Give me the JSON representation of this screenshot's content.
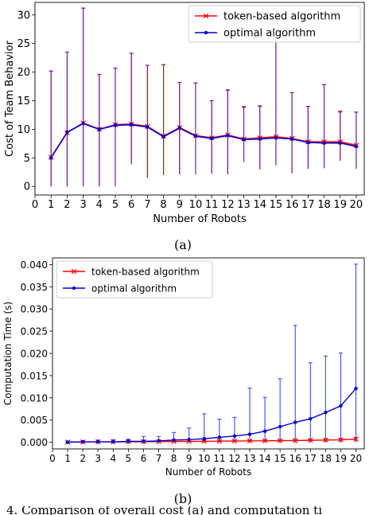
{
  "chart_data": [
    {
      "type": "line",
      "caption": "(a)",
      "xlabel": "Number of Robots",
      "ylabel": "Cost of Team Behavior",
      "xlim": [
        0,
        20.5
      ],
      "ylim": [
        -1.5,
        32.2
      ],
      "xticks": [
        "0",
        "1",
        "2",
        "3",
        "4",
        "5",
        "6",
        "7",
        "8",
        "9",
        "10",
        "11",
        "12",
        "13",
        "14",
        "15",
        "16",
        "17",
        "18",
        "19",
        "20"
      ],
      "yticks": [
        "0",
        "5",
        "10",
        "15",
        "20",
        "25",
        "30"
      ],
      "legend_position": "top-right",
      "x": [
        1,
        2,
        3,
        4,
        5,
        6,
        7,
        8,
        9,
        10,
        11,
        12,
        13,
        14,
        15,
        16,
        17,
        18,
        19,
        20
      ],
      "series": [
        {
          "name": "token-based algorithm",
          "color": "#ff0000",
          "marker": "x",
          "values": [
            5.1,
            9.4,
            11.1,
            10.0,
            10.8,
            10.9,
            10.5,
            8.8,
            10.3,
            8.9,
            8.5,
            9.0,
            8.3,
            8.5,
            8.7,
            8.4,
            7.8,
            7.8,
            7.8,
            7.2
          ],
          "error_upper": [
            20.2,
            23.5,
            31.2,
            19.6,
            20.7,
            23.3,
            21.2,
            21.3,
            18.2,
            18.1,
            15.0,
            16.9,
            14.0,
            14.1,
            25.3,
            16.4,
            14.0,
            17.8,
            13.2,
            13.0
          ],
          "error_lower": [
            0.0,
            0.0,
            0.0,
            0.0,
            0.0,
            3.9,
            1.5,
            2.0,
            2.1,
            2.1,
            2.2,
            2.1,
            4.3,
            3.0,
            3.7,
            2.3,
            3.1,
            3.2,
            4.5,
            3.1
          ]
        },
        {
          "name": "optimal algorithm",
          "color": "#0000cc",
          "marker": "dot",
          "values": [
            5.0,
            9.5,
            11.0,
            10.0,
            10.7,
            10.8,
            10.4,
            8.7,
            10.2,
            8.8,
            8.4,
            8.9,
            8.2,
            8.3,
            8.5,
            8.3,
            7.7,
            7.6,
            7.6,
            7.0
          ],
          "error_upper": [
            20.2,
            23.5,
            31.2,
            19.6,
            20.7,
            23.3,
            21.2,
            21.3,
            18.2,
            18.1,
            15.0,
            16.8,
            13.8,
            14.0,
            25.3,
            16.4,
            14.0,
            17.8,
            13.0,
            13.0
          ],
          "error_lower": [
            0.0,
            0.0,
            0.0,
            0.0,
            0.0,
            3.9,
            1.5,
            2.0,
            2.1,
            2.1,
            2.2,
            2.1,
            4.3,
            3.0,
            3.7,
            2.3,
            3.1,
            3.2,
            4.5,
            3.1
          ]
        }
      ]
    },
    {
      "type": "line",
      "caption": "(b)",
      "xlabel": "Number of Robots",
      "ylabel": "Computation Time (s)",
      "xlim": [
        0,
        20.55
      ],
      "ylim": [
        -0.0015,
        0.0415
      ],
      "xticks": [
        "0",
        "1",
        "2",
        "3",
        "4",
        "5",
        "6",
        "7",
        "8",
        "9",
        "10",
        "11",
        "12",
        "13",
        "14",
        "15",
        "16",
        "17",
        "18",
        "19",
        "20"
      ],
      "yticks": [
        "0.000",
        "0.005",
        "0.010",
        "0.015",
        "0.020",
        "0.025",
        "0.030",
        "0.035",
        "0.040"
      ],
      "legend_position": "top-left",
      "x": [
        1,
        2,
        3,
        4,
        5,
        6,
        7,
        8,
        9,
        10,
        11,
        12,
        13,
        14,
        15,
        16,
        17,
        18,
        19,
        20
      ],
      "series": [
        {
          "name": "token-based algorithm",
          "color": "#ff0000",
          "marker": "x",
          "values": [
            5e-05,
            7e-05,
            8e-05,
            0.0001,
            0.00011,
            0.00013,
            0.00015,
            0.00018,
            0.0002,
            0.00022,
            0.00025,
            0.00028,
            0.0003,
            0.00033,
            0.00036,
            0.0004,
            0.00045,
            0.0005,
            0.00055,
            0.0007
          ],
          "error_upper": [
            0.0001,
            0.00012,
            0.00014,
            0.00016,
            0.00018,
            0.0002,
            0.00023,
            0.00026,
            0.0003,
            0.00032,
            0.00036,
            0.0004,
            0.00045,
            0.0005,
            0.00055,
            0.0006,
            0.0007,
            0.0008,
            0.0009,
            0.0011
          ],
          "error_lower": [
            0,
            0,
            0,
            0,
            0,
            0,
            0,
            0,
            0,
            0,
            0,
            0,
            0,
            0,
            0,
            0,
            0,
            0,
            0,
            0
          ]
        },
        {
          "name": "optimal algorithm",
          "color": "#0000cc",
          "marker": "dot",
          "values": [
            0.0,
            0.0001,
            0.0001,
            0.0001,
            0.0002,
            0.0002,
            0.0003,
            0.0005,
            0.0006,
            0.0008,
            0.0011,
            0.0014,
            0.0018,
            0.0025,
            0.0035,
            0.0045,
            0.0053,
            0.0067,
            0.0082,
            0.0121
          ],
          "error_upper": [
            0.0002,
            0.0004,
            0.0005,
            0.0006,
            0.0007,
            0.0013,
            0.0013,
            0.0022,
            0.0032,
            0.0064,
            0.0052,
            0.0056,
            0.0122,
            0.0101,
            0.0143,
            0.0263,
            0.0179,
            0.0194,
            0.0201,
            0.0401
          ],
          "error_lower": [
            0,
            0,
            0,
            0,
            0,
            0,
            0,
            0,
            0,
            0,
            0,
            0,
            0,
            0,
            0,
            0,
            0,
            0,
            0,
            0
          ]
        }
      ]
    }
  ],
  "figure_caption_partial": "4. Comparison of overall cost (a) and computation ti"
}
